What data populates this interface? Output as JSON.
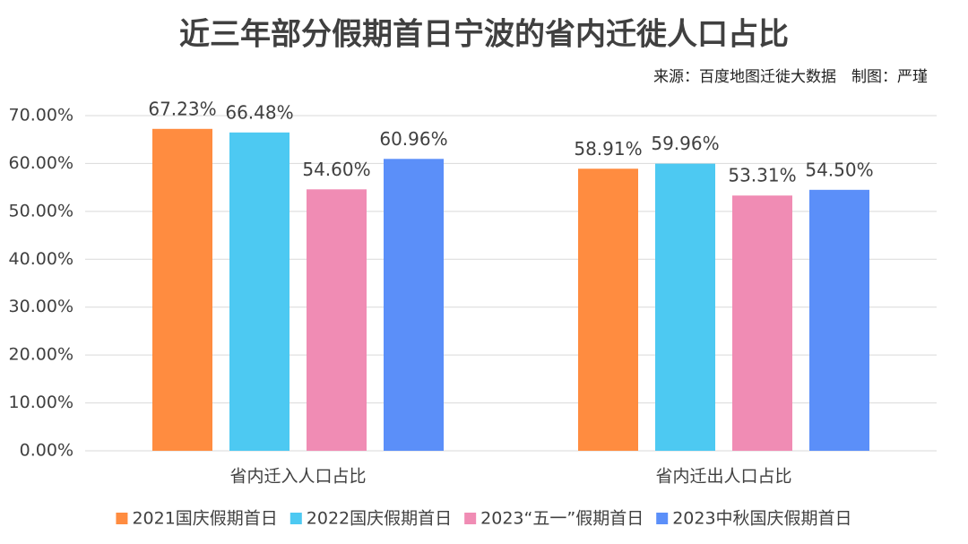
{
  "chart_data": {
    "type": "bar",
    "title": "近三年部分假期首日宁波的省内迁徙人口占比",
    "source": "来源：百度地图迁徙大数据　制图：严瑾",
    "categories": [
      "省内迁入人口占比",
      "省内迁出人口占比"
    ],
    "series": [
      {
        "name": "2021国庆假期首日",
        "color": "#ff8c40",
        "values": [
          67.23,
          58.91
        ],
        "value_labels": [
          "67.23%",
          "58.91%"
        ]
      },
      {
        "name": "2022国庆假期首日",
        "color": "#4dc9f2",
        "values": [
          66.48,
          59.96
        ],
        "value_labels": [
          "66.48%",
          "59.96%"
        ]
      },
      {
        "name": "2023“五一”假期首日",
        "color": "#f08cb4",
        "values": [
          54.6,
          53.31
        ],
        "value_labels": [
          "54.60%",
          "53.31%"
        ]
      },
      {
        "name": "2023中秋国庆假期首日",
        "color": "#5b8ff9",
        "values": [
          60.96,
          54.5
        ],
        "value_labels": [
          "60.96%",
          "54.50%"
        ]
      }
    ],
    "ylim": [
      0,
      70
    ],
    "yticks": [
      {
        "value": 0,
        "label": "0.00%"
      },
      {
        "value": 10,
        "label": "10.00%"
      },
      {
        "value": 20,
        "label": "20.00%"
      },
      {
        "value": 30,
        "label": "30.00%"
      },
      {
        "value": 40,
        "label": "40.00%"
      },
      {
        "value": 50,
        "label": "50.00%"
      },
      {
        "value": 60,
        "label": "60.00%"
      },
      {
        "value": 70,
        "label": "70.00%"
      }
    ],
    "grid": true,
    "legend": "bottom"
  }
}
